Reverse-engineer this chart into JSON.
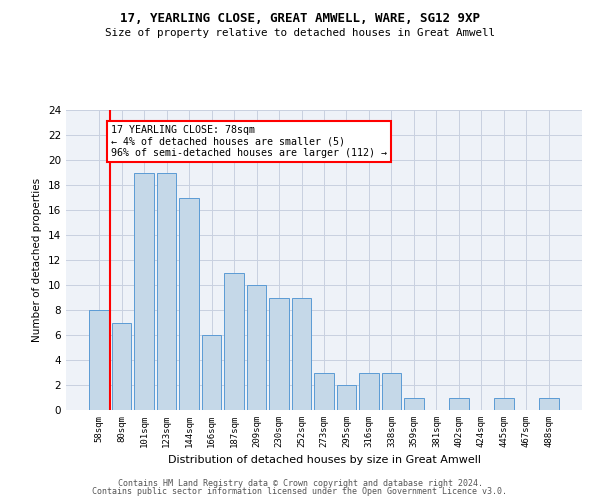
{
  "title1": "17, YEARLING CLOSE, GREAT AMWELL, WARE, SG12 9XP",
  "title2": "Size of property relative to detached houses in Great Amwell",
  "xlabel": "Distribution of detached houses by size in Great Amwell",
  "ylabel": "Number of detached properties",
  "categories": [
    "58sqm",
    "80sqm",
    "101sqm",
    "123sqm",
    "144sqm",
    "166sqm",
    "187sqm",
    "209sqm",
    "230sqm",
    "252sqm",
    "273sqm",
    "295sqm",
    "316sqm",
    "338sqm",
    "359sqm",
    "381sqm",
    "402sqm",
    "424sqm",
    "445sqm",
    "467sqm",
    "488sqm"
  ],
  "values": [
    8,
    7,
    19,
    19,
    17,
    6,
    11,
    10,
    9,
    9,
    3,
    2,
    3,
    3,
    1,
    0,
    1,
    0,
    1,
    0,
    1
  ],
  "bar_color": "#c5d8e8",
  "bar_edge_color": "#5b9bd5",
  "annotation_text": "17 YEARLING CLOSE: 78sqm\n← 4% of detached houses are smaller (5)\n96% of semi-detached houses are larger (112) →",
  "annotation_box_color": "white",
  "annotation_box_edge_color": "red",
  "vline_color": "red",
  "ylim": [
    0,
    24
  ],
  "yticks": [
    0,
    2,
    4,
    6,
    8,
    10,
    12,
    14,
    16,
    18,
    20,
    22,
    24
  ],
  "footer1": "Contains HM Land Registry data © Crown copyright and database right 2024.",
  "footer2": "Contains public sector information licensed under the Open Government Licence v3.0.",
  "bg_color": "#eef2f8",
  "grid_color": "#c8d0e0"
}
